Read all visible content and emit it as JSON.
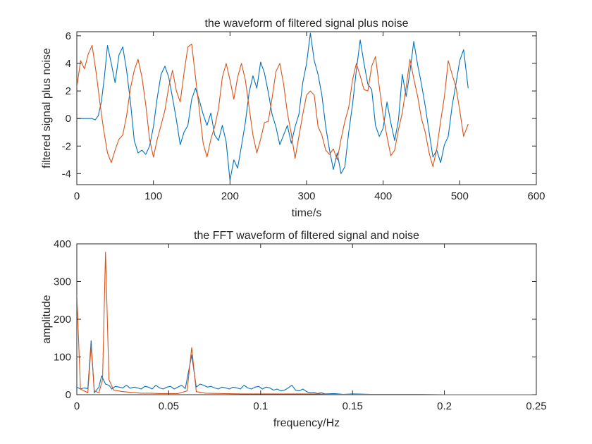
{
  "chart_data": [
    {
      "type": "line",
      "title": "the waveform of filtered signal plus noise",
      "xlabel": "time/s",
      "ylabel": "filtered signal plus noise",
      "xlim": [
        0,
        600
      ],
      "ylim": [
        -4.8,
        6.3
      ],
      "xticks": [
        0,
        100,
        200,
        300,
        400,
        500,
        600
      ],
      "yticks": [
        -4,
        -2,
        0,
        2,
        4,
        6
      ],
      "grid": false,
      "series": [
        {
          "color": "#0072bd",
          "x": [
            0,
            10,
            20,
            24,
            28,
            32,
            36,
            40,
            45,
            50,
            55,
            60,
            65,
            70,
            75,
            80,
            85,
            90,
            95,
            100,
            105,
            110,
            115,
            120,
            125,
            130,
            135,
            140,
            145,
            150,
            155,
            160,
            165,
            170,
            175,
            180,
            185,
            190,
            195,
            200,
            205,
            210,
            215,
            220,
            225,
            230,
            235,
            240,
            245,
            250,
            255,
            260,
            265,
            270,
            275,
            280,
            285,
            290,
            295,
            300,
            305,
            310,
            315,
            320,
            325,
            330,
            335,
            340,
            345,
            350,
            355,
            360,
            365,
            370,
            375,
            380,
            385,
            390,
            395,
            400,
            405,
            410,
            415,
            420,
            425,
            430,
            435,
            440,
            445,
            450,
            455,
            460,
            465,
            470,
            475,
            480,
            485,
            490,
            495,
            500,
            505,
            511
          ],
          "y": [
            0.0,
            0.0,
            0.0,
            -0.1,
            0.2,
            1.2,
            3.0,
            5.3,
            4.0,
            2.6,
            4.6,
            5.2,
            3.5,
            1.2,
            -1.6,
            -2.5,
            -2.3,
            -2.6,
            -2.0,
            -0.6,
            1.5,
            3.2,
            3.8,
            3.0,
            1.5,
            -0.1,
            -1.9,
            -1.0,
            -0.5,
            1.4,
            2.2,
            1.3,
            0.3,
            -0.5,
            0.4,
            -1.2,
            -1.6,
            -0.5,
            -1.7,
            -4.5,
            -3.0,
            -3.6,
            -2.0,
            -0.3,
            1.9,
            3.1,
            2.2,
            4.1,
            3.3,
            1.9,
            0.3,
            -0.6,
            -1.9,
            -1.2,
            -0.5,
            -1.8,
            -0.6,
            0.3,
            2.6,
            4.0,
            6.2,
            4.2,
            3.2,
            1.7,
            -0.6,
            -2.3,
            -3.7,
            -2.5,
            -4.0,
            -3.5,
            -1.0,
            1.0,
            3.5,
            5.7,
            4.0,
            2.5,
            2.1,
            -0.5,
            -1.3,
            -0.7,
            1.2,
            -0.3,
            -1.6,
            -0.1,
            3.2,
            1.6,
            3.4,
            5.6,
            3.9,
            2.5,
            0.9,
            -1.0,
            -2.8,
            -2.3,
            -3.2,
            -1.9,
            -1.3,
            0.9,
            2.5,
            4.2,
            5.0,
            2.2
          ]
        },
        {
          "color": "#d95319",
          "x": [
            0,
            5,
            10,
            15,
            20,
            25,
            30,
            35,
            40,
            45,
            50,
            55,
            60,
            65,
            70,
            75,
            80,
            85,
            90,
            95,
            100,
            105,
            110,
            115,
            120,
            125,
            130,
            135,
            140,
            145,
            150,
            155,
            160,
            165,
            170,
            175,
            180,
            185,
            190,
            195,
            200,
            205,
            210,
            215,
            220,
            225,
            230,
            235,
            240,
            245,
            250,
            255,
            260,
            265,
            270,
            275,
            280,
            285,
            290,
            295,
            300,
            305,
            310,
            315,
            320,
            325,
            330,
            335,
            340,
            345,
            350,
            355,
            360,
            365,
            370,
            375,
            380,
            385,
            390,
            395,
            400,
            405,
            410,
            415,
            420,
            425,
            430,
            435,
            440,
            445,
            450,
            455,
            460,
            465,
            470,
            475,
            480,
            485,
            490,
            495,
            500,
            505,
            511
          ],
          "y": [
            2.3,
            4.2,
            3.6,
            4.7,
            5.3,
            3.4,
            1.2,
            -0.8,
            -2.5,
            -3.2,
            -2.3,
            -1.5,
            -1.2,
            0.2,
            2.2,
            3.5,
            4.3,
            3.0,
            1.0,
            -1.5,
            -2.8,
            -1.5,
            -0.5,
            0.6,
            2.3,
            3.5,
            2.0,
            1.2,
            3.3,
            5.2,
            5.4,
            3.0,
            0.6,
            -1.8,
            -2.8,
            -1.5,
            -0.6,
            0.7,
            3.0,
            4.0,
            2.8,
            1.4,
            3.0,
            4.0,
            2.8,
            0.8,
            -1.2,
            -2.5,
            -1.5,
            -0.3,
            -0.2,
            1.5,
            3.4,
            4.0,
            2.5,
            0.4,
            -1.1,
            -2.9,
            -1.3,
            0.3,
            1.7,
            2.0,
            1.7,
            -0.6,
            -1.2,
            -2.3,
            -2.6,
            -2.2,
            -3.0,
            -1.5,
            -0.2,
            0.8,
            2.8,
            4.0,
            3.1,
            2.1,
            2.0,
            3.8,
            4.5,
            2.3,
            0.2,
            -1.3,
            -2.7,
            -2.3,
            -0.8,
            0.4,
            2.3,
            4.3,
            2.9,
            1.6,
            0.0,
            -1.0,
            -2.5,
            -3.5,
            -2.2,
            -0.2,
            1.6,
            4.2,
            3.2,
            2.3,
            0.6,
            -1.3,
            -0.4
          ]
        }
      ]
    },
    {
      "type": "line",
      "title": "the FFT waveform of filtered signal and noise",
      "xlabel": "frequency/Hz",
      "ylabel": "amplitude",
      "xlim": [
        0,
        0.25
      ],
      "ylim": [
        0,
        400
      ],
      "xticks": [
        0,
        0.05,
        0.1,
        0.15,
        0.2,
        0.25
      ],
      "yticks": [
        0,
        100,
        200,
        300,
        400
      ],
      "grid": false,
      "series": [
        {
          "color": "#0072bd",
          "x": [
            0,
            0.002,
            0.004,
            0.006,
            0.0078,
            0.0095,
            0.012,
            0.0135,
            0.0156,
            0.0175,
            0.019,
            0.021,
            0.023,
            0.025,
            0.027,
            0.029,
            0.031,
            0.033,
            0.035,
            0.037,
            0.039,
            0.041,
            0.043,
            0.045,
            0.047,
            0.049,
            0.051,
            0.053,
            0.055,
            0.057,
            0.059,
            0.0625,
            0.065,
            0.067,
            0.069,
            0.071,
            0.073,
            0.075,
            0.077,
            0.079,
            0.081,
            0.083,
            0.085,
            0.087,
            0.089,
            0.091,
            0.093,
            0.095,
            0.097,
            0.099,
            0.101,
            0.103,
            0.105,
            0.107,
            0.109,
            0.111,
            0.113,
            0.115,
            0.117,
            0.119,
            0.121,
            0.123,
            0.125,
            0.127,
            0.129,
            0.131,
            0.133,
            0.135,
            0.14,
            0.145,
            0.15,
            0.16,
            0.17,
            0.18,
            0.2,
            0.22,
            0.25
          ],
          "y": [
            20,
            15,
            18,
            16,
            143,
            5,
            20,
            50,
            28,
            25,
            15,
            22,
            20,
            18,
            25,
            17,
            20,
            18,
            15,
            22,
            20,
            15,
            25,
            18,
            15,
            20,
            22,
            15,
            20,
            25,
            16,
            105,
            20,
            28,
            25,
            20,
            22,
            18,
            15,
            20,
            18,
            15,
            20,
            18,
            15,
            25,
            18,
            15,
            20,
            22,
            15,
            20,
            18,
            12,
            15,
            10,
            12,
            18,
            25,
            12,
            10,
            15,
            8,
            5,
            6,
            3,
            5,
            2,
            3,
            1,
            2,
            1,
            1,
            1,
            0,
            0,
            0
          ]
        },
        {
          "color": "#d95319",
          "x": [
            0,
            0.002,
            0.004,
            0.006,
            0.0078,
            0.0095,
            0.012,
            0.014,
            0.0156,
            0.0175,
            0.02,
            0.025,
            0.03,
            0.035,
            0.04,
            0.045,
            0.05,
            0.055,
            0.06,
            0.0625,
            0.065,
            0.07,
            0.08,
            0.09,
            0.1,
            0.11,
            0.12,
            0.13,
            0.14,
            0.15,
            0.16,
            0.17,
            0.18,
            0.2,
            0.22,
            0.25
          ],
          "y": [
            265,
            15,
            10,
            5,
            130,
            10,
            5,
            40,
            378,
            40,
            12,
            8,
            6,
            4,
            4,
            3,
            3,
            3,
            10,
            125,
            8,
            4,
            3,
            2,
            2,
            2,
            2,
            2,
            1,
            1,
            1,
            1,
            1,
            0,
            0,
            0
          ]
        }
      ]
    }
  ]
}
